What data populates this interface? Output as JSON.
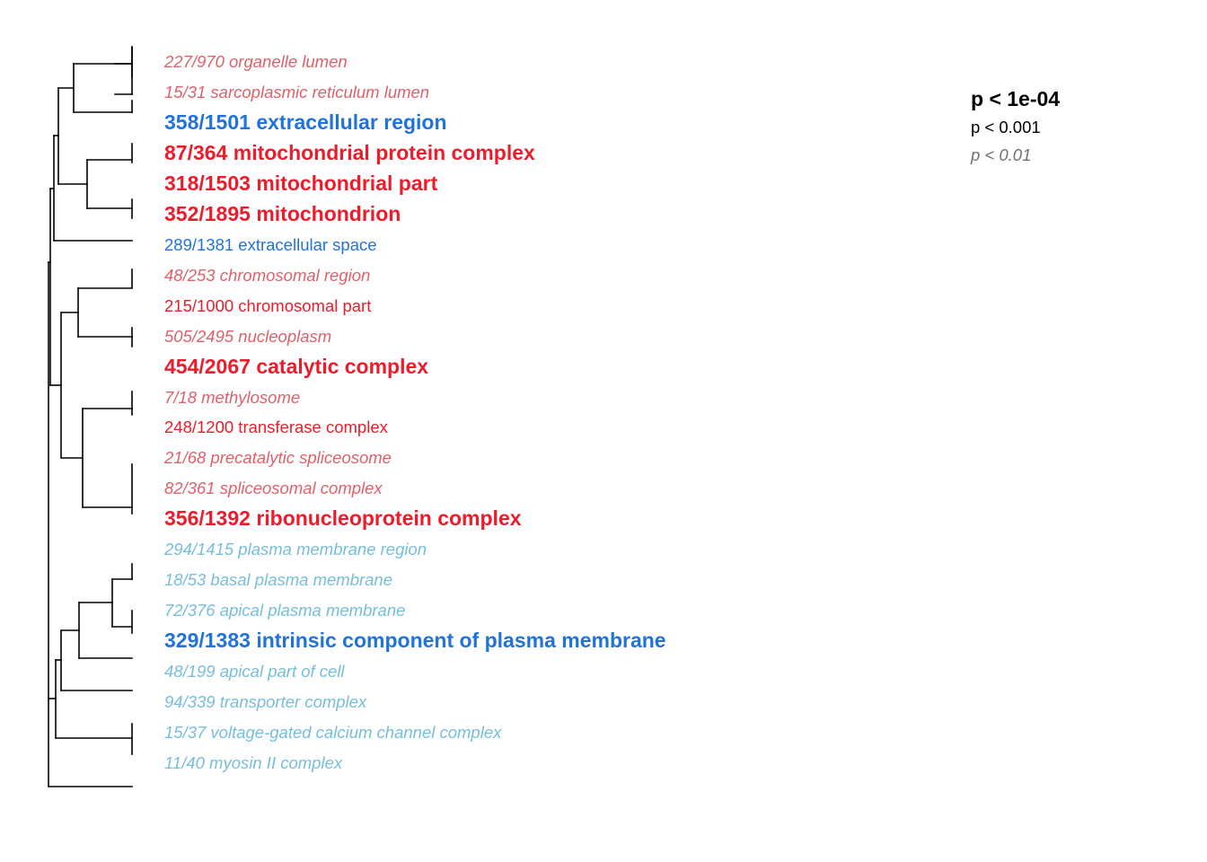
{
  "colors": {
    "line": "#000000",
    "red_strong": "#ee1c2a",
    "red_weak": "#e0606a",
    "blue_strong": "#2173dc",
    "blue_weak": "#75bedc",
    "legend_weak": "#707070"
  },
  "legend": {
    "strong": "p < 1e-04",
    "medium": "p < 0.001",
    "weak": "p < 0.01"
  },
  "terms": [
    {
      "text": "227/970 organelle lumen",
      "level": "weak",
      "color": "red_weak"
    },
    {
      "text": "15/31 sarcoplasmic reticulum lumen",
      "level": "weak",
      "color": "red_weak"
    },
    {
      "text": "358/1501 extracellular region",
      "level": "strong",
      "color": "blue_strong"
    },
    {
      "text": "87/364 mitochondrial protein complex",
      "level": "strong",
      "color": "red_strong"
    },
    {
      "text": "318/1503 mitochondrial part",
      "level": "strong",
      "color": "red_strong"
    },
    {
      "text": "352/1895 mitochondrion",
      "level": "strong",
      "color": "red_strong"
    },
    {
      "text": "289/1381 extracellular space",
      "level": "medium",
      "color": "blue_strong"
    },
    {
      "text": "48/253 chromosomal region",
      "level": "weak",
      "color": "red_weak"
    },
    {
      "text": "215/1000 chromosomal part",
      "level": "medium",
      "color": "red_strong"
    },
    {
      "text": "505/2495 nucleoplasm",
      "level": "weak",
      "color": "red_weak"
    },
    {
      "text": "454/2067 catalytic complex",
      "level": "strong",
      "color": "red_strong"
    },
    {
      "text": "7/18 methylosome",
      "level": "weak",
      "color": "red_weak"
    },
    {
      "text": "248/1200 transferase complex",
      "level": "medium",
      "color": "red_strong"
    },
    {
      "text": "21/68 precatalytic spliceosome",
      "level": "weak",
      "color": "red_weak"
    },
    {
      "text": "82/361 spliceosomal complex",
      "level": "weak",
      "color": "red_weak"
    },
    {
      "text": "356/1392 ribonucleoprotein complex",
      "level": "strong",
      "color": "red_strong"
    },
    {
      "text": "294/1415 plasma membrane region",
      "level": "weak",
      "color": "blue_weak"
    },
    {
      "text": "18/53 basal plasma membrane",
      "level": "weak",
      "color": "blue_weak"
    },
    {
      "text": "72/376 apical plasma membrane",
      "level": "weak",
      "color": "blue_weak"
    },
    {
      "text": "329/1383 intrinsic component of plasma membrane",
      "level": "strong",
      "color": "blue_strong"
    },
    {
      "text": "48/199 apical part of cell",
      "level": "weak",
      "color": "blue_weak"
    },
    {
      "text": "94/339 transporter complex",
      "level": "weak",
      "color": "blue_weak"
    },
    {
      "text": "15/37 voltage-gated calcium channel complex",
      "level": "weak",
      "color": "blue_weak"
    },
    {
      "text": "11/40 myosin II complex",
      "level": "weak",
      "color": "blue_weak"
    }
  ]
}
